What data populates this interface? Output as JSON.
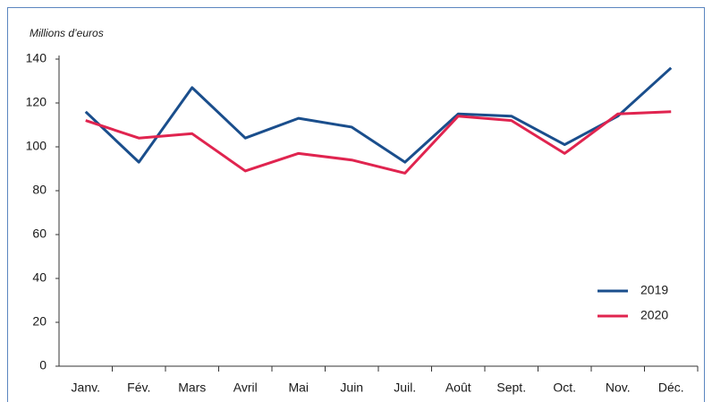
{
  "chart_data": {
    "type": "line",
    "y_axis_label": "Millions d’euros",
    "categories": [
      "Janv.",
      "Fév.",
      "Mars",
      "Avril",
      "Mai",
      "Juin",
      "Juil.",
      "Août",
      "Sept.",
      "Oct.",
      "Nov.",
      "Déc."
    ],
    "series": [
      {
        "name": "2019",
        "color": "#1a4e8c",
        "values": [
          116,
          93,
          127,
          104,
          113,
          109,
          93,
          115,
          114,
          101,
          114,
          136
        ]
      },
      {
        "name": "2020",
        "color": "#e0244f",
        "values": [
          112,
          104,
          106,
          89,
          97,
          94,
          88,
          114,
          112,
          97,
          115,
          116
        ]
      }
    ],
    "ylim": [
      0,
      140
    ],
    "yticks": [
      0,
      20,
      40,
      60,
      80,
      100,
      120,
      140
    ],
    "grid": false,
    "legend": "lower right"
  }
}
